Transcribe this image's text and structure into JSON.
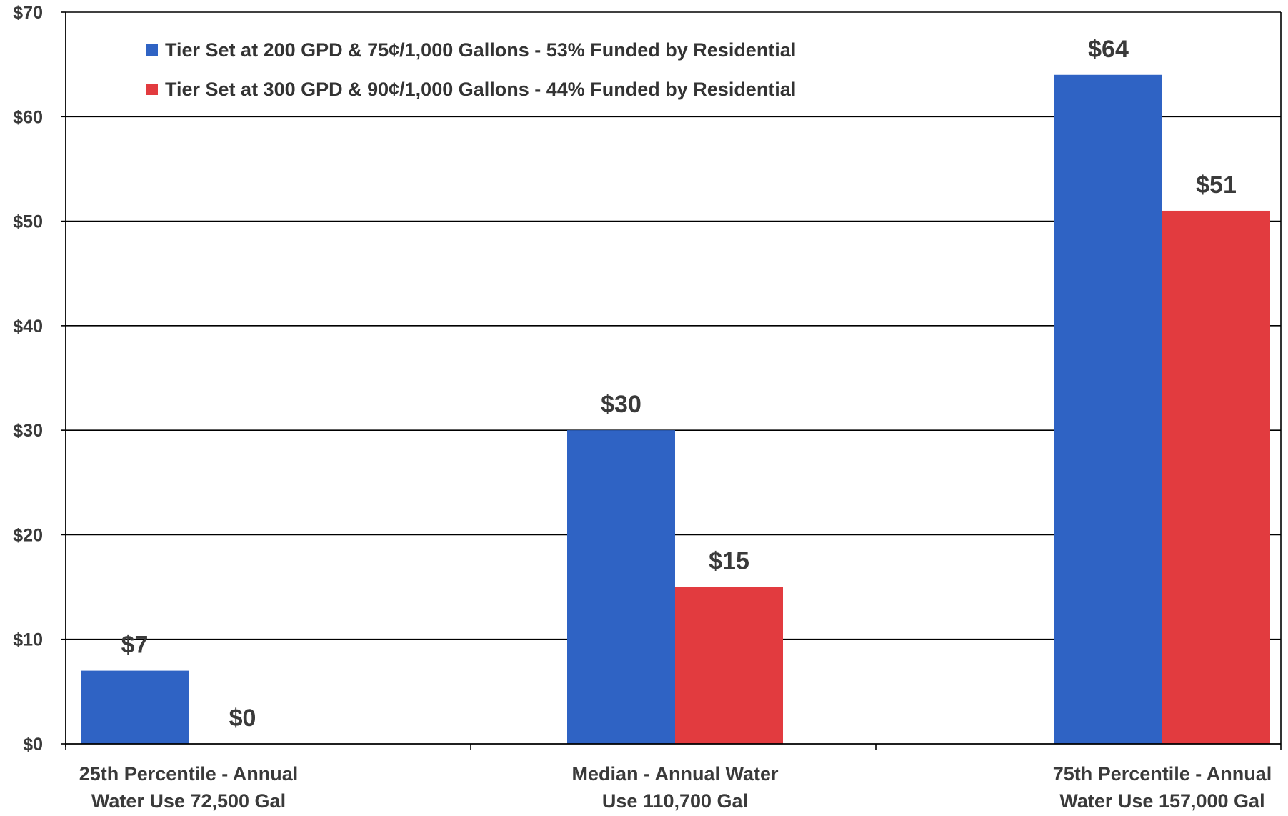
{
  "chart_data": {
    "type": "bar",
    "title": "",
    "xlabel": "",
    "ylabel": "",
    "ylim": [
      0,
      70
    ],
    "y_ticks": [
      0,
      10,
      20,
      30,
      40,
      50,
      60,
      70
    ],
    "y_tick_labels": [
      "$0",
      "$10",
      "$20",
      "$30",
      "$40",
      "$50",
      "$60",
      "$70"
    ],
    "grid": true,
    "legend_position": "top-left",
    "categories": [
      [
        "25th Percentile - Annual",
        "Water Use 72,500 Gal"
      ],
      [
        "Median - Annual Water",
        "Use 110,700 Gal"
      ],
      [
        "75th Percentile - Annual",
        "Water Use 157,000 Gal"
      ]
    ],
    "series": [
      {
        "name": "Tier Set at 200 GPD & 75¢/1,000 Gallons - 53% Funded by Residential",
        "color": "#2f63c4",
        "values": [
          7,
          30,
          64
        ],
        "labels": [
          "$7",
          "$30",
          "$64"
        ]
      },
      {
        "name": "Tier Set at 300 GPD & 90¢/1,000 Gallons - 44% Funded by Residential",
        "color": "#e23b3f",
        "values": [
          0,
          15,
          51
        ],
        "labels": [
          "$0",
          "$15",
          "$51"
        ]
      }
    ]
  }
}
